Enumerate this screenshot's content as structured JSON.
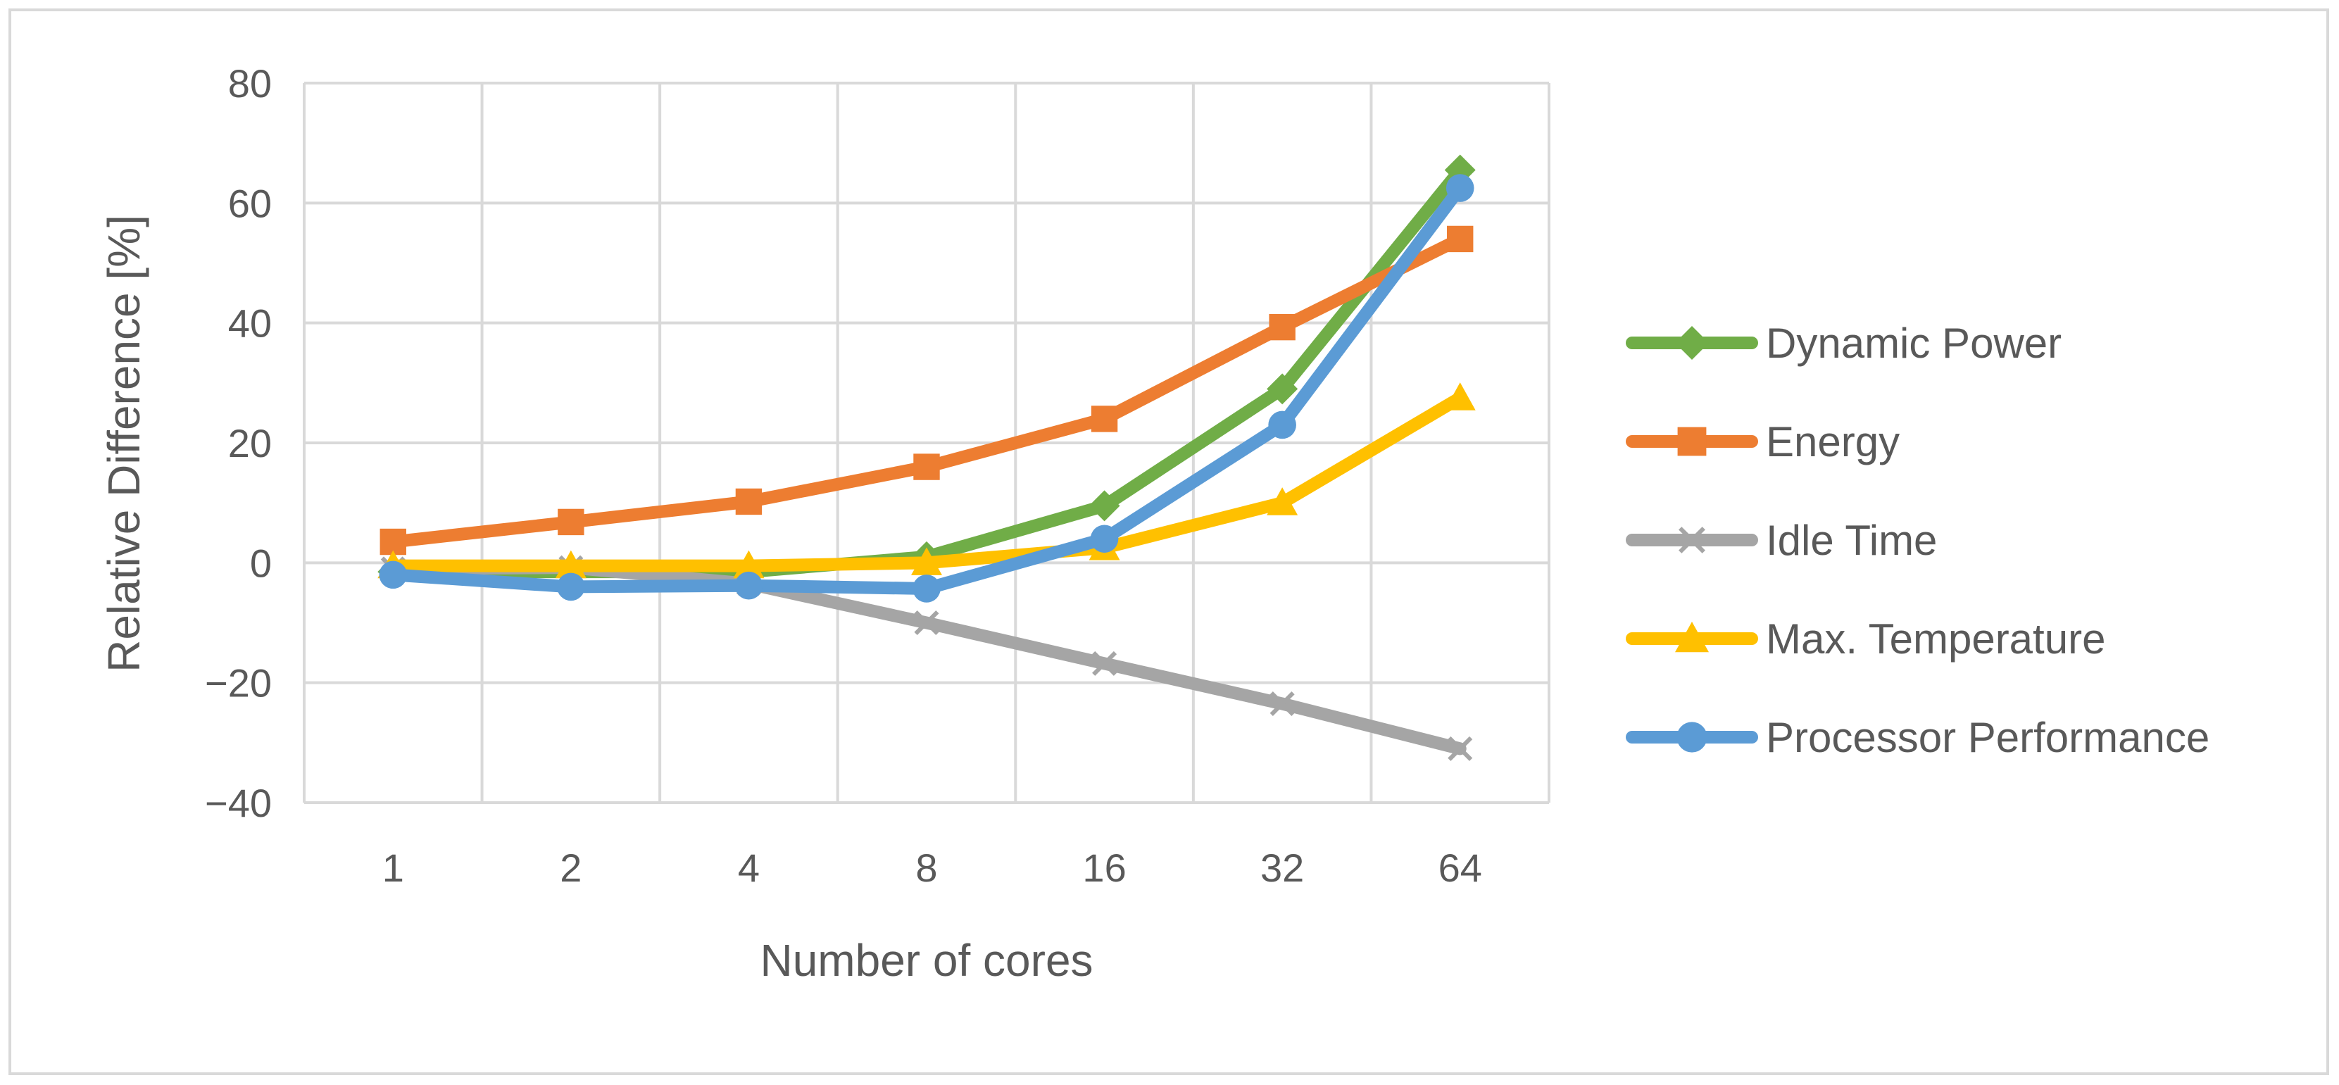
{
  "chart_data": {
    "type": "line",
    "title": "",
    "xlabel": "Number of cores",
    "ylabel": "Relative Difference [%]",
    "ylim": [
      -40,
      80
    ],
    "yticks": [
      80,
      60,
      40,
      20,
      0,
      -20,
      -40
    ],
    "ytick_labels": [
      "80",
      "60",
      "40",
      "20",
      "0",
      "−20",
      "−40"
    ],
    "categories": [
      "1",
      "2",
      "4",
      "8",
      "16",
      "32",
      "64"
    ],
    "grid": true,
    "legend_position": "right",
    "series": [
      {
        "name": "Dynamic Power",
        "color": "#70AD47",
        "marker": "diamond",
        "values": [
          -1.5,
          -1.5,
          -1.5,
          1,
          9.5,
          29,
          65.5
        ]
      },
      {
        "name": "Energy",
        "color": "#ED7D31",
        "marker": "square",
        "values": [
          3.5,
          6.8,
          10.2,
          16,
          24,
          39.3,
          54
        ]
      },
      {
        "name": "Idle Time",
        "color": "#A5A5A5",
        "marker": "x",
        "values": [
          -1,
          -0.8,
          -3.5,
          -10,
          -16.8,
          -23.5,
          -31
        ]
      },
      {
        "name": "Max. Temperature",
        "color": "#FFC000",
        "marker": "triangle",
        "values": [
          -0.5,
          -0.5,
          -0.5,
          0,
          2.5,
          10,
          27.5
        ]
      },
      {
        "name": "Processor Performance",
        "color": "#5B9BD5",
        "marker": "circle",
        "values": [
          -2,
          -4,
          -3.8,
          -4.3,
          4,
          23,
          62.5
        ]
      }
    ]
  }
}
